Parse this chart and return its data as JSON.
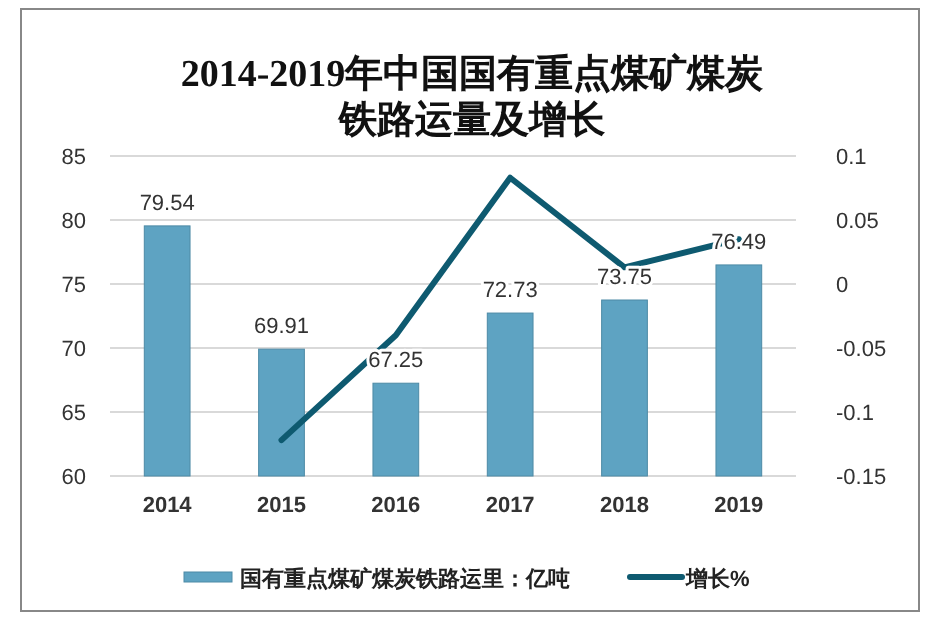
{
  "chart_data": {
    "type": "bar",
    "title": "2014-2019年中国国有重点煤矿煤炭铁路运量及增长",
    "categories": [
      "2014",
      "2015",
      "2016",
      "2017",
      "2018",
      "2019"
    ],
    "series": [
      {
        "name": "国有重点煤矿煤炭铁路运里：亿吨",
        "color": "#5ea3c2",
        "values": [
          79.54,
          69.91,
          67.25,
          72.73,
          73.75,
          76.49
        ],
        "value_labels": [
          "79.54",
          "69.91",
          "67.25",
          "72.73",
          "73.75",
          "76.49"
        ]
      },
      {
        "name": "增长%",
        "type": "line",
        "axis": "y2",
        "color": "#0e5a70",
        "values": [
          null,
          -0.122,
          -0.04,
          0.083,
          0.013,
          0.035
        ]
      }
    ],
    "ylim": [
      60,
      85
    ],
    "yticks": [
      60,
      65,
      70,
      75,
      80,
      85
    ],
    "y2lim": [
      -0.15,
      0.1
    ],
    "y2ticks": [
      -0.15,
      -0.1,
      -0.05,
      0,
      0.05,
      0.1
    ],
    "grid": "y",
    "legend": "bottom",
    "marker": "none",
    "line_style": "solid"
  }
}
